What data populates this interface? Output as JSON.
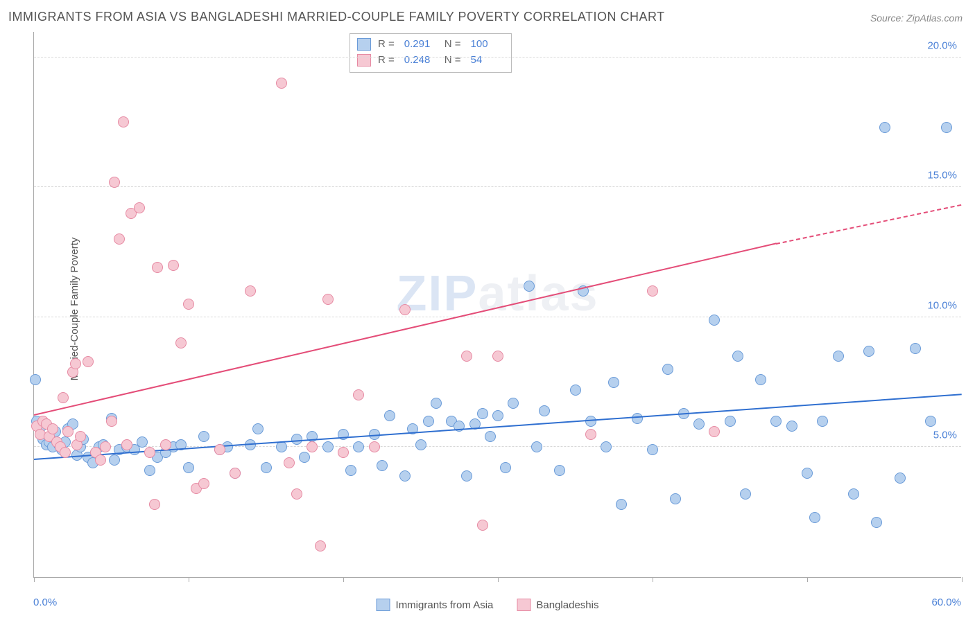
{
  "title": "IMMIGRANTS FROM ASIA VS BANGLADESHI MARRIED-COUPLE FAMILY POVERTY CORRELATION CHART",
  "source": "Source: ZipAtlas.com",
  "ylabel": "Married-Couple Family Poverty",
  "watermark_a": "ZIP",
  "watermark_b": "atlas",
  "chart": {
    "type": "scatter",
    "xlim": [
      0,
      60
    ],
    "ylim": [
      0,
      21
    ],
    "x_start_label": "0.0%",
    "x_end_label": "60.0%",
    "xticks": [
      0,
      10,
      20,
      30,
      40,
      50,
      60
    ],
    "yticks": [
      {
        "v": 5,
        "label": "5.0%"
      },
      {
        "v": 10,
        "label": "10.0%"
      },
      {
        "v": 15,
        "label": "15.0%"
      },
      {
        "v": 20,
        "label": "20.0%"
      }
    ],
    "grid_color": "#d8d8d8",
    "background_color": "#ffffff",
    "series": [
      {
        "name": "Immigrants from Asia",
        "color_fill": "#b6d0ee",
        "color_stroke": "#6a9bd8",
        "trend_color": "#2f6fd0",
        "r_label": "R =",
        "r_value": "0.291",
        "n_label": "N =",
        "n_value": "100",
        "marker_radius": 8,
        "trend": {
          "x1": 0,
          "y1": 4.5,
          "x2": 60,
          "y2": 7.0
        },
        "points": [
          [
            0.1,
            7.6
          ],
          [
            0.2,
            6.0
          ],
          [
            0.5,
            5.8
          ],
          [
            0.6,
            5.3
          ],
          [
            0.8,
            5.1
          ],
          [
            1.0,
            5.2
          ],
          [
            1.2,
            5.0
          ],
          [
            1.4,
            5.6
          ],
          [
            1.6,
            5.1
          ],
          [
            1.8,
            4.9
          ],
          [
            2.0,
            5.2
          ],
          [
            2.2,
            5.7
          ],
          [
            2.5,
            5.9
          ],
          [
            2.8,
            4.7
          ],
          [
            3.0,
            5.0
          ],
          [
            3.2,
            5.3
          ],
          [
            3.5,
            4.6
          ],
          [
            3.8,
            4.4
          ],
          [
            4.0,
            4.8
          ],
          [
            4.2,
            5.0
          ],
          [
            4.5,
            5.1
          ],
          [
            5.0,
            6.1
          ],
          [
            5.2,
            4.5
          ],
          [
            5.5,
            4.9
          ],
          [
            6.0,
            5.0
          ],
          [
            6.5,
            4.9
          ],
          [
            7.0,
            5.2
          ],
          [
            7.5,
            4.1
          ],
          [
            8.0,
            4.6
          ],
          [
            8.5,
            4.8
          ],
          [
            9.0,
            5.0
          ],
          [
            9.5,
            5.1
          ],
          [
            10.0,
            4.2
          ],
          [
            11.0,
            5.4
          ],
          [
            12.0,
            4.9
          ],
          [
            12.5,
            5.0
          ],
          [
            13.0,
            4.0
          ],
          [
            14.0,
            5.1
          ],
          [
            14.5,
            5.7
          ],
          [
            15.0,
            4.2
          ],
          [
            16.0,
            5.0
          ],
          [
            17.0,
            5.3
          ],
          [
            17.5,
            4.6
          ],
          [
            18.0,
            5.4
          ],
          [
            19.0,
            5.0
          ],
          [
            20.0,
            5.5
          ],
          [
            20.5,
            4.1
          ],
          [
            21.0,
            5.0
          ],
          [
            22.0,
            5.5
          ],
          [
            22.5,
            4.3
          ],
          [
            23.0,
            6.2
          ],
          [
            24.0,
            3.9
          ],
          [
            24.5,
            5.7
          ],
          [
            25.0,
            5.1
          ],
          [
            25.5,
            6.0
          ],
          [
            26.0,
            6.7
          ],
          [
            27.0,
            6.0
          ],
          [
            27.5,
            5.8
          ],
          [
            28.0,
            3.9
          ],
          [
            28.5,
            5.9
          ],
          [
            29.0,
            6.3
          ],
          [
            29.5,
            5.4
          ],
          [
            30.0,
            6.2
          ],
          [
            30.5,
            4.2
          ],
          [
            31.0,
            6.7
          ],
          [
            32.0,
            11.2
          ],
          [
            32.5,
            5.0
          ],
          [
            33.0,
            6.4
          ],
          [
            34.0,
            4.1
          ],
          [
            35.0,
            7.2
          ],
          [
            35.5,
            11.0
          ],
          [
            36.0,
            6.0
          ],
          [
            37.0,
            5.0
          ],
          [
            37.5,
            7.5
          ],
          [
            38.0,
            2.8
          ],
          [
            39.0,
            6.1
          ],
          [
            40.0,
            4.9
          ],
          [
            41.0,
            8.0
          ],
          [
            41.5,
            3.0
          ],
          [
            42.0,
            6.3
          ],
          [
            43.0,
            5.9
          ],
          [
            44.0,
            9.9
          ],
          [
            45.0,
            6.0
          ],
          [
            45.5,
            8.5
          ],
          [
            46.0,
            3.2
          ],
          [
            47.0,
            7.6
          ],
          [
            48.0,
            6.0
          ],
          [
            49.0,
            5.8
          ],
          [
            50.0,
            4.0
          ],
          [
            50.5,
            2.3
          ],
          [
            51.0,
            6.0
          ],
          [
            52.0,
            8.5
          ],
          [
            53.0,
            3.2
          ],
          [
            54.0,
            8.7
          ],
          [
            54.5,
            2.1
          ],
          [
            55.0,
            17.3
          ],
          [
            56.0,
            3.8
          ],
          [
            57.0,
            8.8
          ],
          [
            58.0,
            6.0
          ],
          [
            59.0,
            17.3
          ]
        ]
      },
      {
        "name": "Bangladeshis",
        "color_fill": "#f6c8d3",
        "color_stroke": "#e68aa3",
        "trend_color": "#e44d78",
        "r_label": "R =",
        "r_value": "0.248",
        "n_label": "N =",
        "n_value": "54",
        "marker_radius": 8,
        "trend": {
          "x1": 0,
          "y1": 6.2,
          "x2": 48,
          "y2": 12.8
        },
        "trend_dash": {
          "x1": 48,
          "y1": 12.8,
          "x2": 60,
          "y2": 14.3
        },
        "points": [
          [
            0.2,
            5.8
          ],
          [
            0.4,
            5.5
          ],
          [
            0.6,
            6.0
          ],
          [
            0.8,
            5.9
          ],
          [
            1.0,
            5.4
          ],
          [
            1.2,
            5.7
          ],
          [
            1.5,
            5.2
          ],
          [
            1.7,
            5.0
          ],
          [
            1.9,
            6.9
          ],
          [
            2.0,
            4.8
          ],
          [
            2.2,
            5.6
          ],
          [
            2.5,
            7.9
          ],
          [
            2.7,
            8.2
          ],
          [
            2.8,
            5.1
          ],
          [
            3.0,
            5.4
          ],
          [
            3.5,
            8.3
          ],
          [
            4.0,
            4.8
          ],
          [
            4.3,
            4.5
          ],
          [
            4.6,
            5.0
          ],
          [
            5.0,
            6.0
          ],
          [
            5.2,
            15.2
          ],
          [
            5.5,
            13.0
          ],
          [
            5.8,
            17.5
          ],
          [
            6.0,
            5.1
          ],
          [
            6.3,
            14.0
          ],
          [
            6.8,
            14.2
          ],
          [
            7.5,
            4.8
          ],
          [
            7.8,
            2.8
          ],
          [
            8.0,
            11.9
          ],
          [
            8.5,
            5.1
          ],
          [
            9.0,
            12.0
          ],
          [
            9.5,
            9.0
          ],
          [
            10.0,
            10.5
          ],
          [
            10.5,
            3.4
          ],
          [
            11.0,
            3.6
          ],
          [
            12.0,
            4.9
          ],
          [
            13.0,
            4.0
          ],
          [
            14.0,
            11.0
          ],
          [
            16.0,
            19.0
          ],
          [
            16.5,
            4.4
          ],
          [
            17.0,
            3.2
          ],
          [
            18.0,
            5.0
          ],
          [
            18.5,
            1.2
          ],
          [
            19.0,
            10.7
          ],
          [
            20.0,
            4.8
          ],
          [
            21.0,
            7.0
          ],
          [
            22.0,
            5.0
          ],
          [
            24.0,
            10.3
          ],
          [
            28.0,
            8.5
          ],
          [
            29.0,
            2.0
          ],
          [
            30.0,
            8.5
          ],
          [
            36.0,
            5.5
          ],
          [
            40.0,
            11.0
          ],
          [
            44.0,
            5.6
          ]
        ]
      }
    ]
  }
}
